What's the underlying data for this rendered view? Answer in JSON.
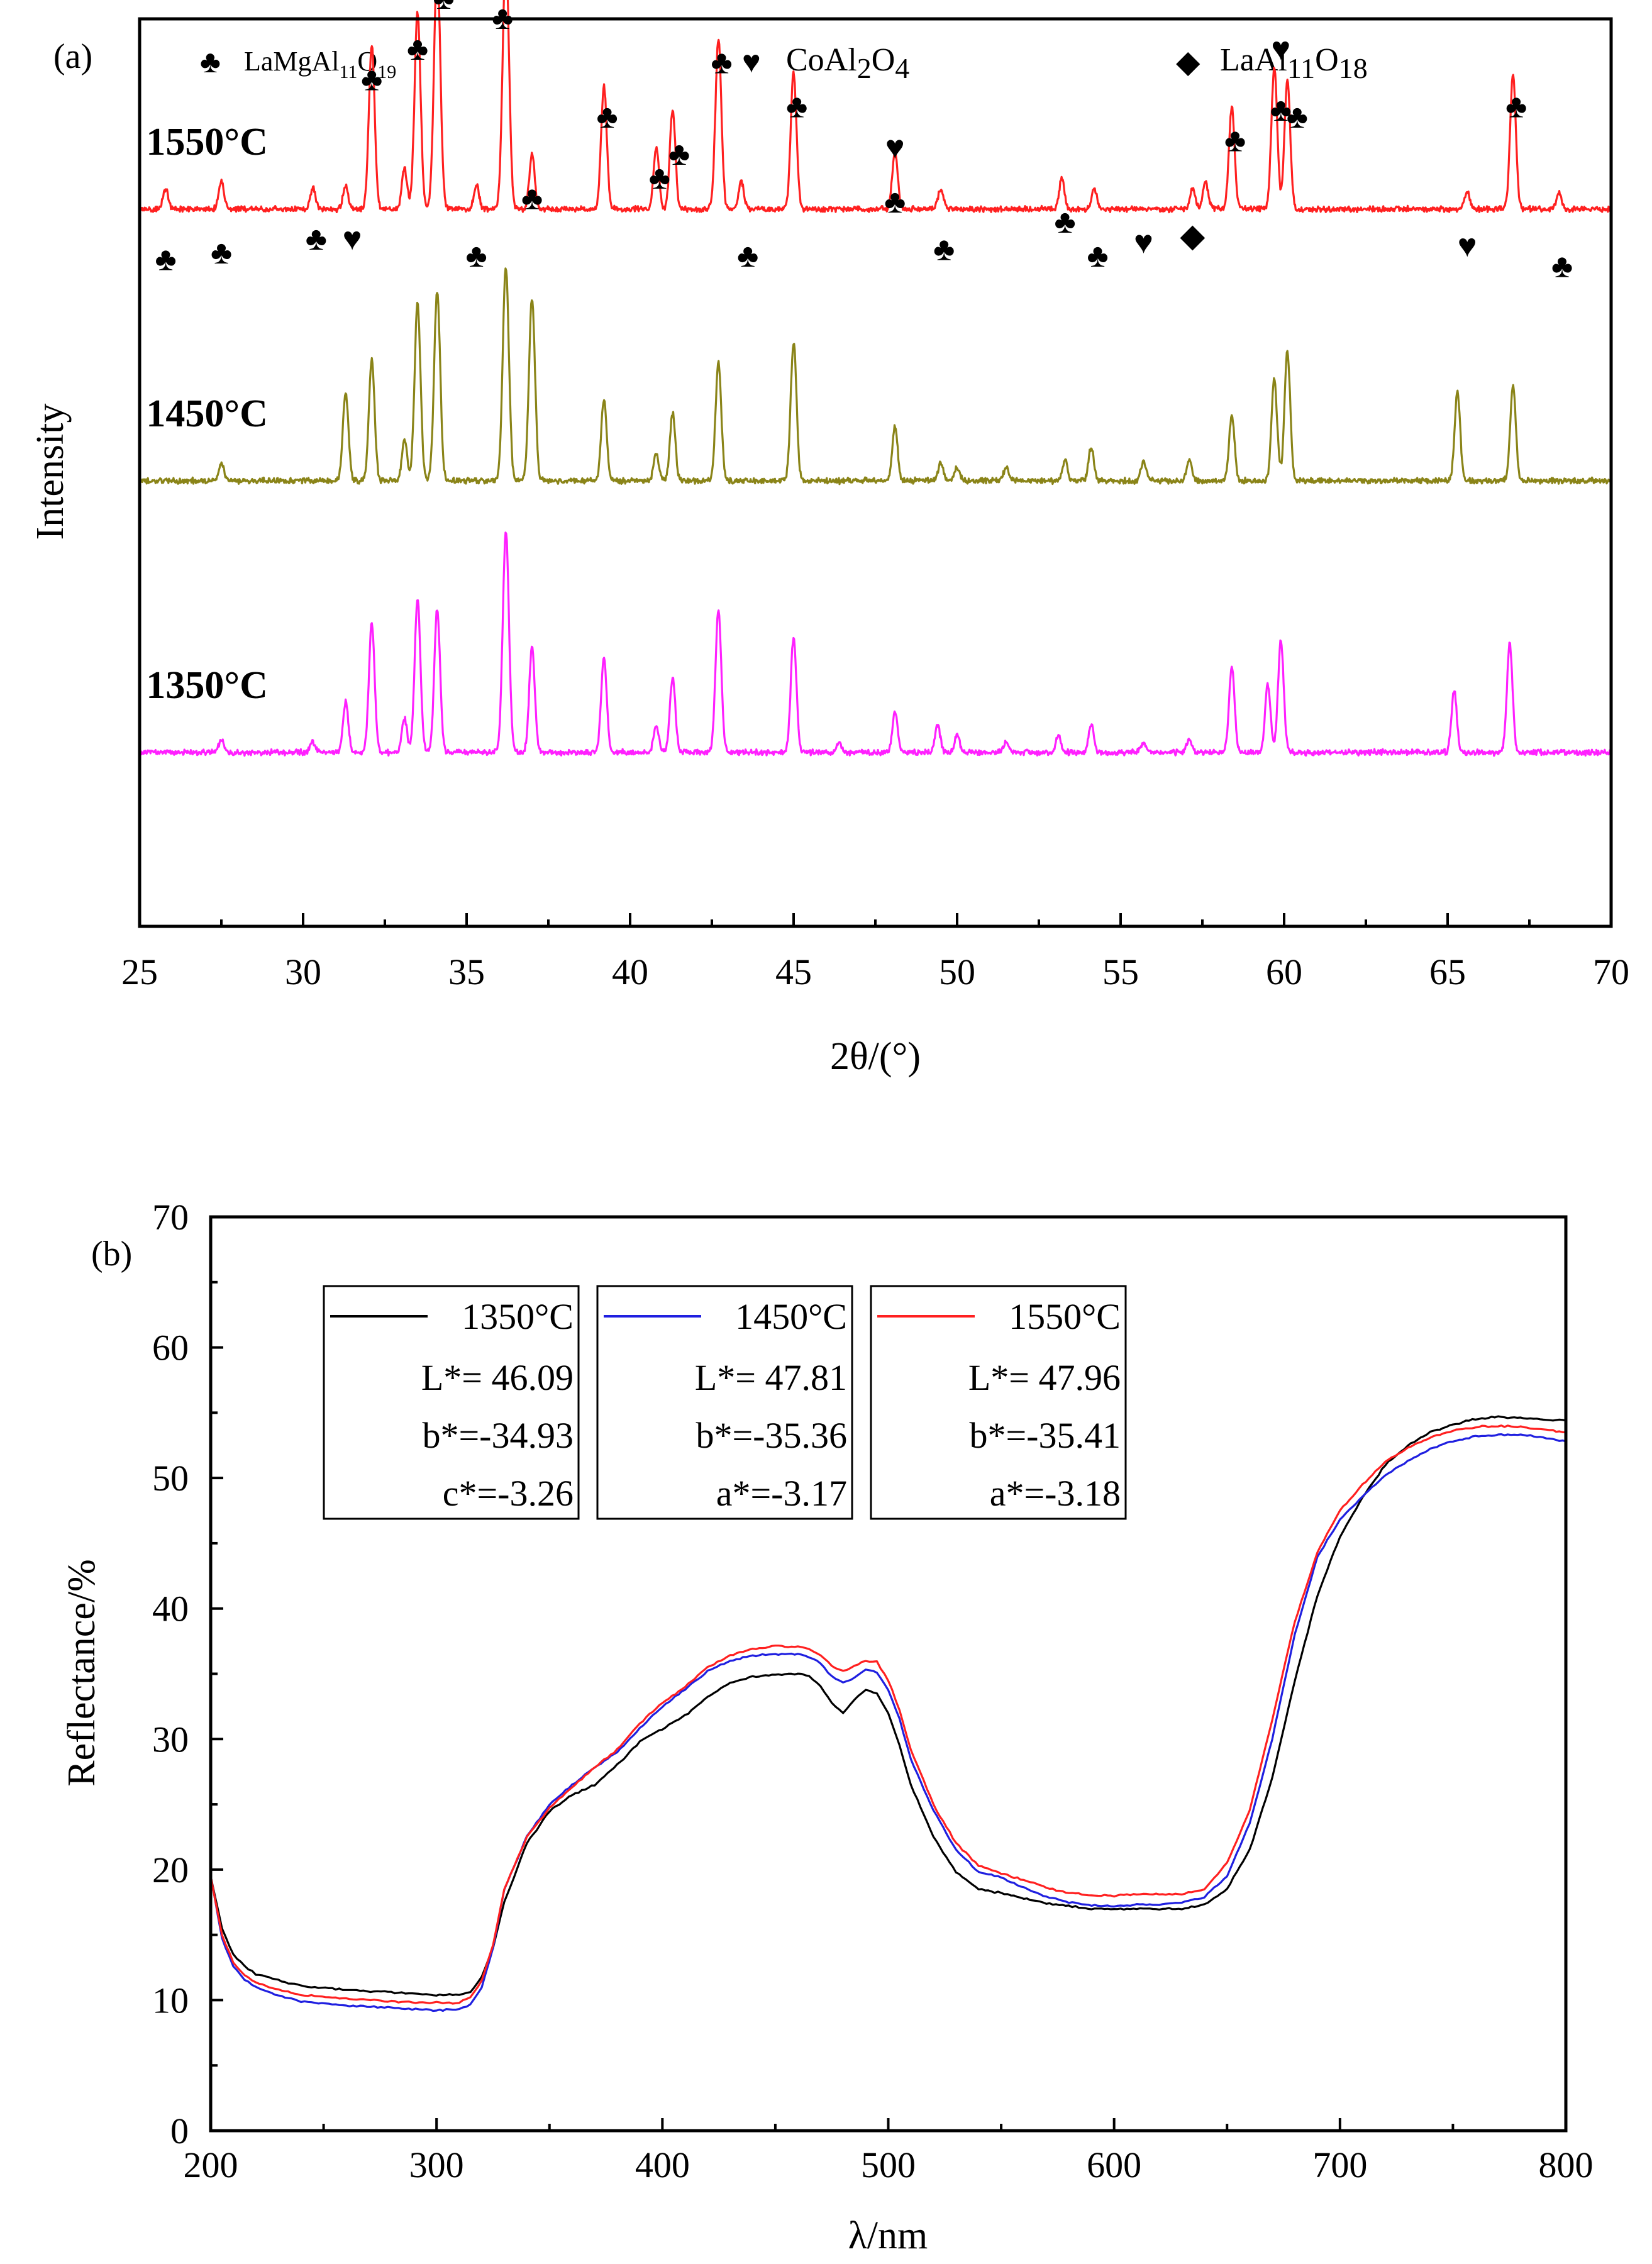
{
  "colors": {
    "red": "#ff2020",
    "olive": "#8a8418",
    "magenta": "#ff20ff",
    "black": "#000000",
    "blue": "#1f1fe0",
    "navy": "#101070"
  },
  "symbols": {
    "club": "♣",
    "heart": "♥",
    "diamond": "◆"
  },
  "chart_data": [
    {
      "type": "line",
      "panel_label": "(a)",
      "xlabel": "2θ/(°)",
      "ylabel": "Intensity",
      "xlim": [
        25,
        70
      ],
      "xticks": [
        "25",
        "30",
        "35",
        "40",
        "45",
        "50",
        "55",
        "60",
        "65",
        "70"
      ],
      "legend": [
        {
          "symbol": "club",
          "base": "LaMgAl",
          "sub1": "11",
          "mid": "O",
          "sub2": "19"
        },
        {
          "symbol": "heart",
          "base": "CoAl",
          "sub1": "2",
          "mid": "O",
          "sub2": "4"
        },
        {
          "symbol": "diamond",
          "base": "LaAl",
          "sub1": "11",
          "mid": "O",
          "sub2": "18"
        }
      ],
      "series": [
        {
          "name": "1550°C",
          "color": "red",
          "baseline": 0.56,
          "peaks": [
            [
              25.8,
              0.06
            ],
            [
              27.5,
              0.08
            ],
            [
              30.3,
              0.06
            ],
            [
              31.3,
              0.07
            ],
            [
              32.1,
              0.48
            ],
            [
              33.1,
              0.12
            ],
            [
              33.5,
              0.58
            ],
            [
              34.1,
              0.72
            ],
            [
              35.3,
              0.07
            ],
            [
              36.2,
              0.75
            ],
            [
              37.0,
              0.16
            ],
            [
              39.2,
              0.36
            ],
            [
              40.8,
              0.18
            ],
            [
              41.3,
              0.29
            ],
            [
              42.7,
              0.5
            ],
            [
              43.4,
              0.08
            ],
            [
              45.0,
              0.4
            ],
            [
              48.1,
              0.17
            ],
            [
              49.5,
              0.06
            ],
            [
              53.2,
              0.09
            ],
            [
              54.2,
              0.06
            ],
            [
              57.2,
              0.06
            ],
            [
              57.6,
              0.08
            ],
            [
              58.4,
              0.3
            ],
            [
              59.7,
              0.42
            ],
            [
              60.1,
              0.38
            ],
            [
              65.6,
              0.05
            ],
            [
              67.0,
              0.4
            ],
            [
              68.4,
              0.05
            ]
          ]
        },
        {
          "name": "1450°C",
          "color": "olive",
          "baseline": 1.36,
          "peaks": [
            [
              27.5,
              0.05
            ],
            [
              31.3,
              0.26
            ],
            [
              32.1,
              0.36
            ],
            [
              33.1,
              0.12
            ],
            [
              33.5,
              0.52
            ],
            [
              34.1,
              0.56
            ],
            [
              36.2,
              0.63
            ],
            [
              37.0,
              0.54
            ],
            [
              39.2,
              0.24
            ],
            [
              40.8,
              0.08
            ],
            [
              41.3,
              0.2
            ],
            [
              42.7,
              0.35
            ],
            [
              45.0,
              0.41
            ],
            [
              48.1,
              0.16
            ],
            [
              49.5,
              0.05
            ],
            [
              50.0,
              0.04
            ],
            [
              51.5,
              0.04
            ],
            [
              53.3,
              0.06
            ],
            [
              54.1,
              0.1
            ],
            [
              55.7,
              0.06
            ],
            [
              57.1,
              0.06
            ],
            [
              58.4,
              0.19
            ],
            [
              59.7,
              0.3
            ],
            [
              60.1,
              0.38
            ],
            [
              65.3,
              0.26
            ],
            [
              67.0,
              0.28
            ]
          ]
        },
        {
          "name": "1350°C",
          "color": "magenta",
          "baseline": 2.16,
          "peaks": [
            [
              27.5,
              0.04
            ],
            [
              30.3,
              0.03
            ],
            [
              31.3,
              0.15
            ],
            [
              32.1,
              0.38
            ],
            [
              33.1,
              0.1
            ],
            [
              33.5,
              0.45
            ],
            [
              34.1,
              0.42
            ],
            [
              36.2,
              0.65
            ],
            [
              37.0,
              0.31
            ],
            [
              39.2,
              0.28
            ],
            [
              40.8,
              0.08
            ],
            [
              41.3,
              0.22
            ],
            [
              42.7,
              0.42
            ],
            [
              45.0,
              0.34
            ],
            [
              46.4,
              0.03
            ],
            [
              48.1,
              0.12
            ],
            [
              49.4,
              0.08
            ],
            [
              50.0,
              0.05
            ],
            [
              51.5,
              0.03
            ],
            [
              53.1,
              0.05
            ],
            [
              54.1,
              0.08
            ],
            [
              55.7,
              0.03
            ],
            [
              57.1,
              0.04
            ],
            [
              58.4,
              0.25
            ],
            [
              59.5,
              0.2
            ],
            [
              59.9,
              0.33
            ],
            [
              65.2,
              0.18
            ],
            [
              66.9,
              0.32
            ]
          ]
        }
      ],
      "markers": [
        {
          "x": 25.8,
          "y": 0.74,
          "s": "club"
        },
        {
          "x": 27.5,
          "y": 0.72,
          "s": "club"
        },
        {
          "x": 30.4,
          "y": 0.68,
          "s": "club"
        },
        {
          "x": 31.5,
          "y": 0.68,
          "s": "heart"
        },
        {
          "x": 32.1,
          "y": 0.21,
          "s": "club"
        },
        {
          "x": 33.5,
          "y": 0.12,
          "s": "club"
        },
        {
          "x": 34.3,
          "y": -0.03,
          "s": "club"
        },
        {
          "x": 35.3,
          "y": 0.73,
          "s": "club"
        },
        {
          "x": 36.1,
          "y": 0.03,
          "s": "club"
        },
        {
          "x": 37.0,
          "y": 0.56,
          "s": "club"
        },
        {
          "x": 39.3,
          "y": 0.32,
          "s": "club"
        },
        {
          "x": 40.9,
          "y": 0.5,
          "s": "club"
        },
        {
          "x": 41.5,
          "y": 0.43,
          "s": "club"
        },
        {
          "x": 42.8,
          "y": 0.16,
          "s": "club"
        },
        {
          "x": 43.6,
          "y": 0.73,
          "s": "club"
        },
        {
          "x": 45.1,
          "y": 0.29,
          "s": "club"
        },
        {
          "x": 48.1,
          "y": 0.41,
          "s": "heart"
        },
        {
          "x": 48.1,
          "y": 0.57,
          "s": "club"
        },
        {
          "x": 49.6,
          "y": 0.71,
          "s": "club"
        },
        {
          "x": 53.3,
          "y": 0.63,
          "s": "club"
        },
        {
          "x": 54.3,
          "y": 0.73,
          "s": "club"
        },
        {
          "x": 55.7,
          "y": 0.69,
          "s": "heart"
        },
        {
          "x": 57.2,
          "y": 0.67,
          "s": "diamond"
        },
        {
          "x": 58.5,
          "y": 0.39,
          "s": "club"
        },
        {
          "x": 59.9,
          "y": 0.12,
          "s": "heart"
        },
        {
          "x": 59.9,
          "y": 0.3,
          "s": "club"
        },
        {
          "x": 60.4,
          "y": 0.32,
          "s": "club"
        },
        {
          "x": 65.6,
          "y": 0.7,
          "s": "heart"
        },
        {
          "x": 67.1,
          "y": 0.29,
          "s": "club"
        },
        {
          "x": 68.5,
          "y": 0.76,
          "s": "club"
        }
      ]
    },
    {
      "type": "line",
      "panel_label": "(b)",
      "xlabel": "λ/nm",
      "ylabel": "Reflectance/%",
      "xlim": [
        200,
        800
      ],
      "ylim": [
        0,
        70
      ],
      "xticks": [
        "200",
        "300",
        "400",
        "500",
        "600",
        "700",
        "800"
      ],
      "yticks": [
        "0",
        "10",
        "20",
        "30",
        "40",
        "50",
        "60",
        "70"
      ],
      "legend_boxes": [
        {
          "series": "1350°C",
          "color": "black",
          "lines": [
            "L*= 46.09",
            "b*=-34.93",
            "c*=-3.26"
          ]
        },
        {
          "series": "1450°C",
          "color": "blue",
          "lines": [
            "L*= 47.81",
            "b*=-35.36",
            "a*=-3.17"
          ]
        },
        {
          "series": "1550°C",
          "color": "red",
          "lines": [
            "L*= 47.96",
            "b*=-35.41",
            "a*=-3.18"
          ]
        }
      ],
      "series": [
        {
          "name": "1350°C",
          "color": "black",
          "x": [
            200,
            205,
            210,
            215,
            220,
            230,
            240,
            260,
            280,
            300,
            310,
            315,
            320,
            325,
            330,
            340,
            350,
            360,
            370,
            380,
            390,
            400,
            410,
            420,
            430,
            440,
            450,
            460,
            465,
            470,
            475,
            480,
            485,
            490,
            495,
            500,
            505,
            510,
            520,
            530,
            540,
            550,
            560,
            570,
            580,
            590,
            600,
            610,
            620,
            630,
            640,
            650,
            660,
            670,
            680,
            690,
            700,
            710,
            720,
            730,
            740,
            750,
            760,
            770,
            780,
            790,
            800
          ],
          "y": [
            19.5,
            15.5,
            13.5,
            12.6,
            12.0,
            11.5,
            11.1,
            10.8,
            10.6,
            10.4,
            10.4,
            10.6,
            11.8,
            14.0,
            17.5,
            22.0,
            24.5,
            25.7,
            26.5,
            28.0,
            29.8,
            30.8,
            31.8,
            33.2,
            34.3,
            34.8,
            34.9,
            35.0,
            34.8,
            34.0,
            32.8,
            32.0,
            33.0,
            33.8,
            33.5,
            32.0,
            29.5,
            26.5,
            22.5,
            19.8,
            18.5,
            18.2,
            17.8,
            17.4,
            17.2,
            17.0,
            17.0,
            17.0,
            17.0,
            17.0,
            17.3,
            18.5,
            21.5,
            27.0,
            34.5,
            41.0,
            45.5,
            48.5,
            51.0,
            52.5,
            53.5,
            54.1,
            54.5,
            54.7,
            54.6,
            54.5,
            54.4
          ]
        },
        {
          "name": "1450°C",
          "color": "blue",
          "x": [
            200,
            205,
            210,
            215,
            220,
            230,
            240,
            260,
            280,
            300,
            310,
            315,
            320,
            325,
            330,
            340,
            350,
            360,
            370,
            380,
            390,
            400,
            410,
            420,
            430,
            440,
            450,
            460,
            465,
            470,
            475,
            480,
            485,
            490,
            495,
            500,
            505,
            510,
            520,
            530,
            540,
            550,
            560,
            570,
            580,
            590,
            600,
            610,
            620,
            630,
            640,
            650,
            660,
            670,
            680,
            690,
            700,
            710,
            720,
            730,
            740,
            750,
            760,
            770,
            780,
            790,
            800
          ],
          "y": [
            19.5,
            14.8,
            12.6,
            11.6,
            11.0,
            10.3,
            9.9,
            9.6,
            9.4,
            9.2,
            9.3,
            9.7,
            11.0,
            14.0,
            18.5,
            22.5,
            25.0,
            26.5,
            27.8,
            29.0,
            30.8,
            32.5,
            33.8,
            35.2,
            36.0,
            36.4,
            36.5,
            36.5,
            36.3,
            35.8,
            34.8,
            34.3,
            34.7,
            35.3,
            35.1,
            33.8,
            31.5,
            28.5,
            24.5,
            21.5,
            19.8,
            19.4,
            18.6,
            17.9,
            17.5,
            17.3,
            17.2,
            17.3,
            17.3,
            17.5,
            17.9,
            19.5,
            23.5,
            30.0,
            38.0,
            44.0,
            46.8,
            48.6,
            50.2,
            51.3,
            52.2,
            52.8,
            53.2,
            53.3,
            53.3,
            53.1,
            52.8
          ]
        },
        {
          "name": "1550°C",
          "color": "red",
          "x": [
            200,
            205,
            210,
            215,
            220,
            230,
            240,
            260,
            280,
            300,
            310,
            315,
            320,
            325,
            330,
            340,
            350,
            360,
            370,
            380,
            390,
            400,
            410,
            420,
            430,
            440,
            450,
            460,
            465,
            470,
            475,
            480,
            485,
            490,
            495,
            500,
            505,
            510,
            520,
            530,
            540,
            550,
            560,
            570,
            580,
            590,
            600,
            610,
            620,
            630,
            640,
            650,
            660,
            670,
            680,
            690,
            700,
            710,
            720,
            730,
            740,
            750,
            760,
            770,
            780,
            790,
            800
          ],
          "y": [
            19.5,
            15.0,
            12.9,
            11.9,
            11.3,
            10.8,
            10.4,
            10.1,
            9.9,
            9.8,
            9.8,
            10.2,
            11.5,
            14.2,
            18.5,
            22.5,
            24.7,
            26.3,
            27.8,
            29.2,
            31.2,
            32.8,
            34.0,
            35.5,
            36.4,
            36.9,
            37.1,
            37.1,
            36.9,
            36.4,
            35.6,
            35.2,
            35.6,
            36.0,
            35.9,
            34.5,
            32.2,
            29.2,
            25.0,
            22.0,
            20.3,
            19.7,
            19.2,
            18.6,
            18.2,
            18.0,
            18.0,
            18.1,
            18.1,
            18.1,
            18.5,
            20.5,
            24.5,
            31.5,
            39.0,
            44.3,
            47.5,
            49.5,
            51.2,
            52.3,
            53.1,
            53.6,
            53.9,
            54.0,
            53.9,
            53.7,
            53.5
          ]
        }
      ]
    }
  ]
}
